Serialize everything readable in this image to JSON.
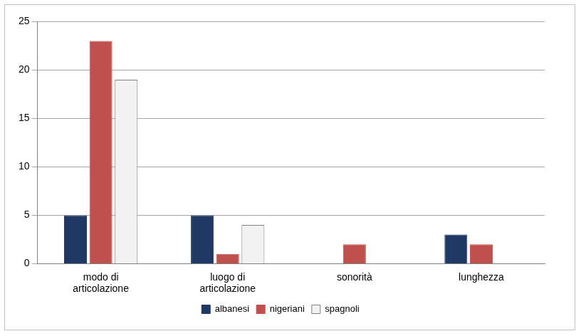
{
  "chart_data": {
    "type": "bar",
    "categories": [
      "modo di articolazione",
      "luogo di articolazione",
      "sonorità",
      "lunghezza"
    ],
    "series": [
      {
        "name": "albanesi",
        "color": "#1f3864",
        "values": [
          5,
          5,
          0,
          3
        ]
      },
      {
        "name": "nigeriani",
        "color": "#c0504d",
        "values": [
          23,
          1,
          2,
          2
        ]
      },
      {
        "name": "spagnoli",
        "color": "#f2f2f2",
        "values": [
          19,
          4,
          0,
          0
        ]
      }
    ],
    "ylim": [
      0,
      25
    ],
    "yticks": [
      0,
      5,
      10,
      15,
      20,
      25
    ],
    "grid": true,
    "legend": "bottom"
  }
}
